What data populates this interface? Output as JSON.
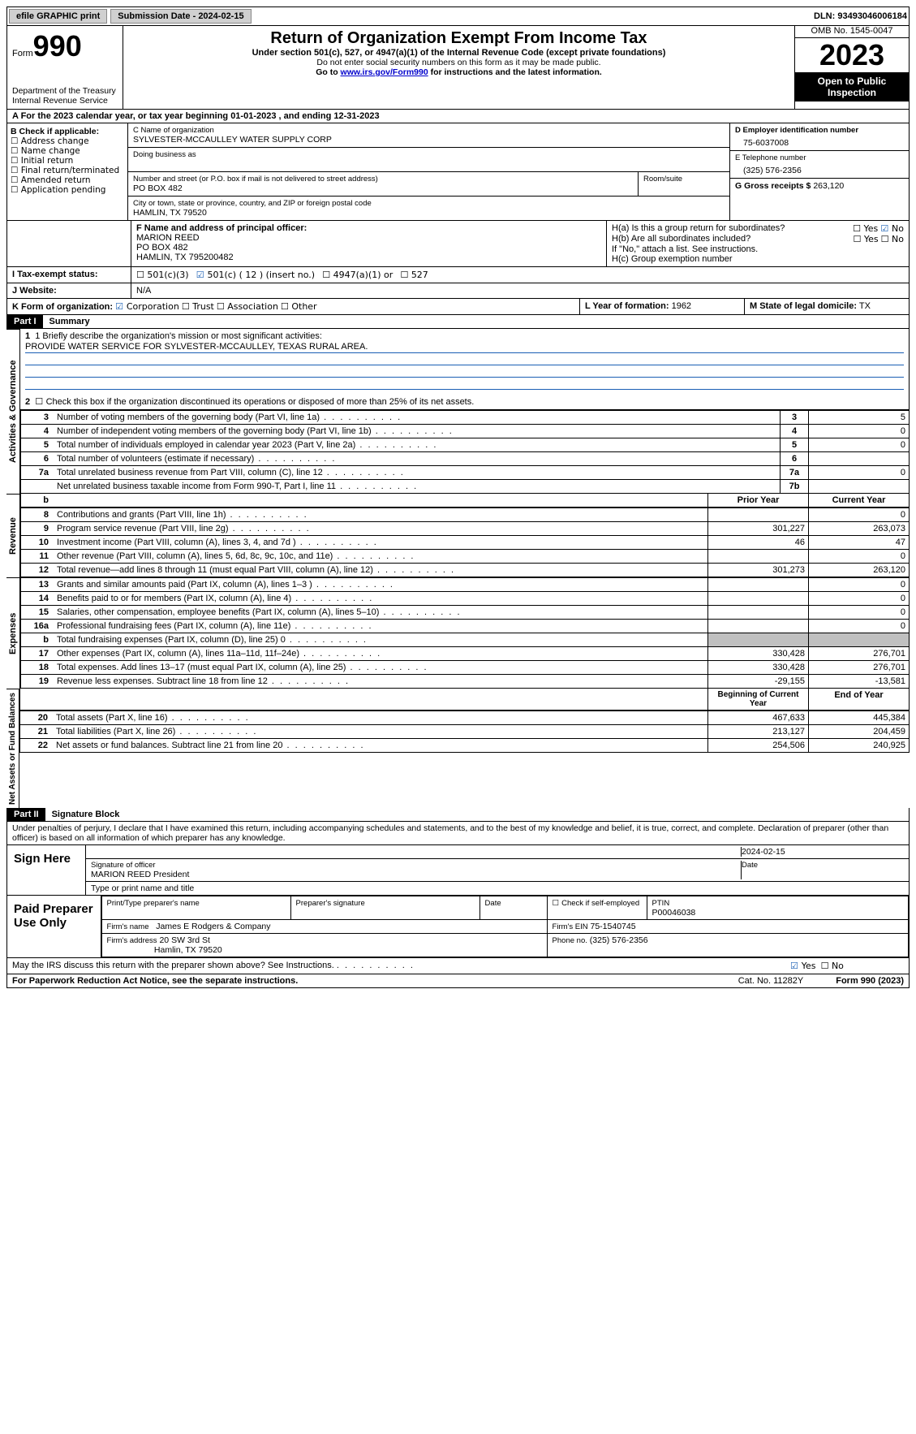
{
  "topbar": {
    "efile": "efile GRAPHIC print",
    "submission": "Submission Date - 2024-02-15",
    "dln_label": "DLN:",
    "dln": "93493046006184"
  },
  "header": {
    "form_word": "Form",
    "form_num": "990",
    "dept": "Department of the Treasury",
    "irs": "Internal Revenue Service",
    "title": "Return of Organization Exempt From Income Tax",
    "sub": "Under section 501(c), 527, or 4947(a)(1) of the Internal Revenue Code (except private foundations)",
    "note1": "Do not enter social security numbers on this form as it may be made public.",
    "note2_pre": "Go to ",
    "note2_link": "www.irs.gov/Form990",
    "note2_post": " for instructions and the latest information.",
    "omb": "OMB No. 1545-0047",
    "year": "2023",
    "open": "Open to Public Inspection"
  },
  "row_a": "A For the 2023 calendar year, or tax year beginning 01-01-2023   , and ending 12-31-2023",
  "col_b": {
    "header": "B Check if applicable:",
    "items": [
      "Address change",
      "Name change",
      "Initial return",
      "Final return/terminated",
      "Amended return",
      "Application pending"
    ]
  },
  "col_c": {
    "name_label": "C Name of organization",
    "name": "SYLVESTER-MCCAULLEY WATER SUPPLY CORP",
    "dba_label": "Doing business as",
    "addr_label": "Number and street (or P.O. box if mail is not delivered to street address)",
    "addr": "PO BOX 482",
    "room_label": "Room/suite",
    "city_label": "City or town, state or province, country, and ZIP or foreign postal code",
    "city": "HAMLIN, TX  79520"
  },
  "col_d": {
    "label_d": "D Employer identification number",
    "ein": "75-6037008",
    "label_e": "E Telephone number",
    "phone": "(325) 576-2356",
    "label_g": "G Gross receipts $",
    "receipts": "263,120"
  },
  "row_f": {
    "label": "F  Name and address of principal officer:",
    "name": "MARION REED",
    "addr1": "PO BOX 482",
    "addr2": "HAMLIN, TX  795200482"
  },
  "row_h": {
    "ha": "H(a)  Is this a group return for subordinates?",
    "hb": "H(b)  Are all subordinates included?",
    "hb_note": "If \"No,\" attach a list. See instructions.",
    "hc": "H(c)  Group exemption number",
    "yes": "Yes",
    "no": "No"
  },
  "row_i": {
    "label": "I   Tax-exempt status:",
    "opt1": "501(c)(3)",
    "opt2": "501(c) ( 12 ) (insert no.)",
    "opt3": "4947(a)(1) or",
    "opt4": "527"
  },
  "row_j": {
    "label": "J   Website:",
    "val": "N/A"
  },
  "row_k": {
    "label": "K Form of organization:",
    "opts": [
      "Corporation",
      "Trust",
      "Association",
      "Other"
    ],
    "l_label": "L Year of formation:",
    "l_val": "1962",
    "m_label": "M State of legal domicile:",
    "m_val": "TX"
  },
  "part1": {
    "hdr": "Part I",
    "title": "Summary",
    "line1_label": "1   Briefly describe the organization's mission or most significant activities:",
    "mission": "PROVIDE WATER SERVICE FOR SYLVESTER-MCCAULLEY, TEXAS RURAL AREA.",
    "line2": "Check this box      if the organization discontinued its operations or disposed of more than 25% of its net assets.",
    "sides": {
      "gov": "Activities & Governance",
      "rev": "Revenue",
      "exp": "Expenses",
      "net": "Net Assets or Fund Balances"
    },
    "gov_rows": [
      {
        "n": "3",
        "d": "Number of voting members of the governing body (Part VI, line 1a)",
        "ln": "3",
        "v": "5"
      },
      {
        "n": "4",
        "d": "Number of independent voting members of the governing body (Part VI, line 1b)",
        "ln": "4",
        "v": "0"
      },
      {
        "n": "5",
        "d": "Total number of individuals employed in calendar year 2023 (Part V, line 2a)",
        "ln": "5",
        "v": "0"
      },
      {
        "n": "6",
        "d": "Total number of volunteers (estimate if necessary)",
        "ln": "6",
        "v": ""
      },
      {
        "n": "7a",
        "d": "Total unrelated business revenue from Part VIII, column (C), line 12",
        "ln": "7a",
        "v": "0"
      },
      {
        "n": "",
        "d": "Net unrelated business taxable income from Form 990-T, Part I, line 11",
        "ln": "7b",
        "v": ""
      }
    ],
    "col_hdrs": {
      "b": "b",
      "prior": "Prior Year",
      "current": "Current Year"
    },
    "rev_rows": [
      {
        "n": "8",
        "d": "Contributions and grants (Part VIII, line 1h)",
        "p": "",
        "c": "0"
      },
      {
        "n": "9",
        "d": "Program service revenue (Part VIII, line 2g)",
        "p": "301,227",
        "c": "263,073"
      },
      {
        "n": "10",
        "d": "Investment income (Part VIII, column (A), lines 3, 4, and 7d )",
        "p": "46",
        "c": "47"
      },
      {
        "n": "11",
        "d": "Other revenue (Part VIII, column (A), lines 5, 6d, 8c, 9c, 10c, and 11e)",
        "p": "",
        "c": "0"
      },
      {
        "n": "12",
        "d": "Total revenue—add lines 8 through 11 (must equal Part VIII, column (A), line 12)",
        "p": "301,273",
        "c": "263,120"
      }
    ],
    "exp_rows": [
      {
        "n": "13",
        "d": "Grants and similar amounts paid (Part IX, column (A), lines 1–3 )",
        "p": "",
        "c": "0"
      },
      {
        "n": "14",
        "d": "Benefits paid to or for members (Part IX, column (A), line 4)",
        "p": "",
        "c": "0"
      },
      {
        "n": "15",
        "d": "Salaries, other compensation, employee benefits (Part IX, column (A), lines 5–10)",
        "p": "",
        "c": "0"
      },
      {
        "n": "16a",
        "d": "Professional fundraising fees (Part IX, column (A), line 11e)",
        "p": "",
        "c": "0"
      },
      {
        "n": "b",
        "d": "Total fundraising expenses (Part IX, column (D), line 25) 0",
        "p": "grey",
        "c": "grey"
      },
      {
        "n": "17",
        "d": "Other expenses (Part IX, column (A), lines 11a–11d, 11f–24e)",
        "p": "330,428",
        "c": "276,701"
      },
      {
        "n": "18",
        "d": "Total expenses. Add lines 13–17 (must equal Part IX, column (A), line 25)",
        "p": "330,428",
        "c": "276,701"
      },
      {
        "n": "19",
        "d": "Revenue less expenses. Subtract line 18 from line 12",
        "p": "-29,155",
        "c": "-13,581"
      }
    ],
    "net_hdrs": {
      "begin": "Beginning of Current Year",
      "end": "End of Year"
    },
    "net_rows": [
      {
        "n": "20",
        "d": "Total assets (Part X, line 16)",
        "p": "467,633",
        "c": "445,384"
      },
      {
        "n": "21",
        "d": "Total liabilities (Part X, line 26)",
        "p": "213,127",
        "c": "204,459"
      },
      {
        "n": "22",
        "d": "Net assets or fund balances. Subtract line 21 from line 20",
        "p": "254,506",
        "c": "240,925"
      }
    ]
  },
  "part2": {
    "hdr": "Part II",
    "title": "Signature Block",
    "decl": "Under penalties of perjury, I declare that I have examined this return, including accompanying schedules and statements, and to the best of my knowledge and belief, it is true, correct, and complete. Declaration of preparer (other than officer) is based on all information of which preparer has any knowledge.",
    "sign_here": "Sign Here",
    "sig_officer": "Signature of officer",
    "sig_date": "2024-02-15",
    "officer_name": "MARION REED  President",
    "type_name": "Type or print name and title",
    "date_label": "Date",
    "paid": "Paid Preparer Use Only",
    "prep_name_label": "Print/Type preparer's name",
    "prep_sig_label": "Preparer's signature",
    "check_self": "Check         if self-employed",
    "ptin_label": "PTIN",
    "ptin": "P00046038",
    "firm_name_label": "Firm's name",
    "firm_name": "James E Rodgers & Company",
    "firm_ein_label": "Firm's EIN",
    "firm_ein": "75-1540745",
    "firm_addr_label": "Firm's address",
    "firm_addr1": "20 SW 3rd St",
    "firm_addr2": "Hamlin, TX  79520",
    "phone_label": "Phone no.",
    "phone": "(325) 576-2356",
    "discuss": "May the IRS discuss this return with the preparer shown above? See Instructions."
  },
  "footer": {
    "pra": "For Paperwork Reduction Act Notice, see the separate instructions.",
    "cat": "Cat. No. 11282Y",
    "form": "Form 990 (2023)"
  }
}
